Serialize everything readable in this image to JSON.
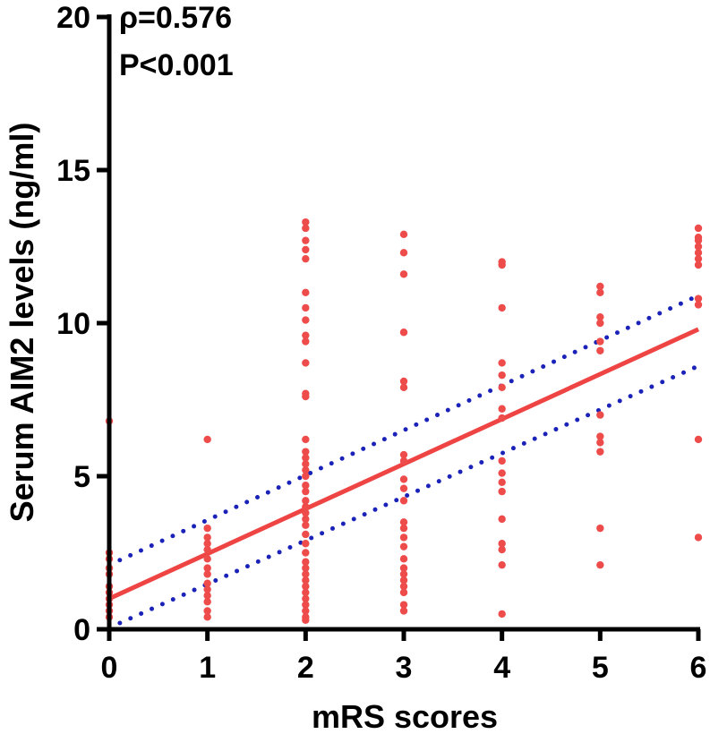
{
  "chart_data": {
    "type": "scatter",
    "title": "",
    "xlabel": "mRS scores",
    "ylabel": "Serum AIM2 levels (ng/ml)",
    "xlim": [
      0,
      6
    ],
    "ylim": [
      0,
      20
    ],
    "x_ticks": [
      "0",
      "1",
      "2",
      "3",
      "4",
      "5",
      "6"
    ],
    "y_ticks": [
      "0",
      "5",
      "10",
      "15",
      "20"
    ],
    "annotations": {
      "rho": "ρ=0.576",
      "p": "P<0.001"
    },
    "colors": {
      "points": "#ee4b4b",
      "fit": "#ee4444",
      "ci": "#1a22b8",
      "axis": "#000000"
    },
    "fit_line": {
      "x": [
        0,
        6
      ],
      "y": [
        1.0,
        9.8
      ]
    },
    "ci_upper": {
      "x": [
        0,
        6
      ],
      "y": [
        2.1,
        10.9
      ]
    },
    "ci_lower": {
      "x": [
        0,
        6
      ],
      "y": [
        0.05,
        8.6
      ]
    },
    "series": [
      {
        "name": "mRS 0",
        "x": 0,
        "values": [
          6.8,
          2.5,
          2.3,
          2.0,
          1.8,
          1.4,
          1.2,
          1.0,
          0.8,
          0.6,
          0.4
        ]
      },
      {
        "name": "mRS 1",
        "x": 1,
        "values": [
          6.2,
          3.3,
          3.0,
          2.8,
          2.6,
          2.3,
          2.0,
          1.8,
          1.5,
          1.3,
          1.1,
          0.9,
          0.6,
          0.4
        ]
      },
      {
        "name": "mRS 2",
        "x": 2,
        "values": [
          13.3,
          13.1,
          12.7,
          12.4,
          12.1,
          11.0,
          10.5,
          10.1,
          9.6,
          9.4,
          8.7,
          7.7,
          7.6,
          6.2,
          5.8,
          5.6,
          5.4,
          5.2,
          5.0,
          4.7,
          4.5,
          4.2,
          4.0,
          3.8,
          3.6,
          3.4,
          3.1,
          2.8,
          2.5,
          2.2,
          2.0,
          1.8,
          1.6,
          1.4,
          1.2,
          1.0,
          0.8,
          0.6,
          0.4,
          0.3
        ]
      },
      {
        "name": "mRS 3",
        "x": 3,
        "values": [
          12.9,
          12.3,
          11.6,
          9.7,
          8.1,
          7.9,
          5.7,
          5.5,
          4.9,
          4.6,
          4.2,
          3.5,
          3.3,
          3.0,
          2.7,
          2.3,
          2.0,
          1.8,
          1.6,
          1.4,
          1.2,
          0.8,
          0.6
        ]
      },
      {
        "name": "mRS 4",
        "x": 4,
        "values": [
          12.0,
          11.9,
          10.5,
          8.7,
          8.3,
          7.9,
          7.2,
          6.9,
          5.5,
          5.1,
          4.8,
          4.5,
          3.6,
          2.8,
          2.6,
          2.1,
          0.5
        ]
      },
      {
        "name": "mRS 5",
        "x": 5,
        "values": [
          11.2,
          11.0,
          10.2,
          10.0,
          9.4,
          9.1,
          7.0,
          6.3,
          6.1,
          5.8,
          3.3,
          2.1
        ]
      },
      {
        "name": "mRS 6",
        "x": 6,
        "values": [
          13.1,
          12.8,
          12.7,
          12.5,
          12.3,
          12.1,
          11.9,
          10.8,
          10.6,
          6.2,
          3.0
        ]
      }
    ]
  }
}
